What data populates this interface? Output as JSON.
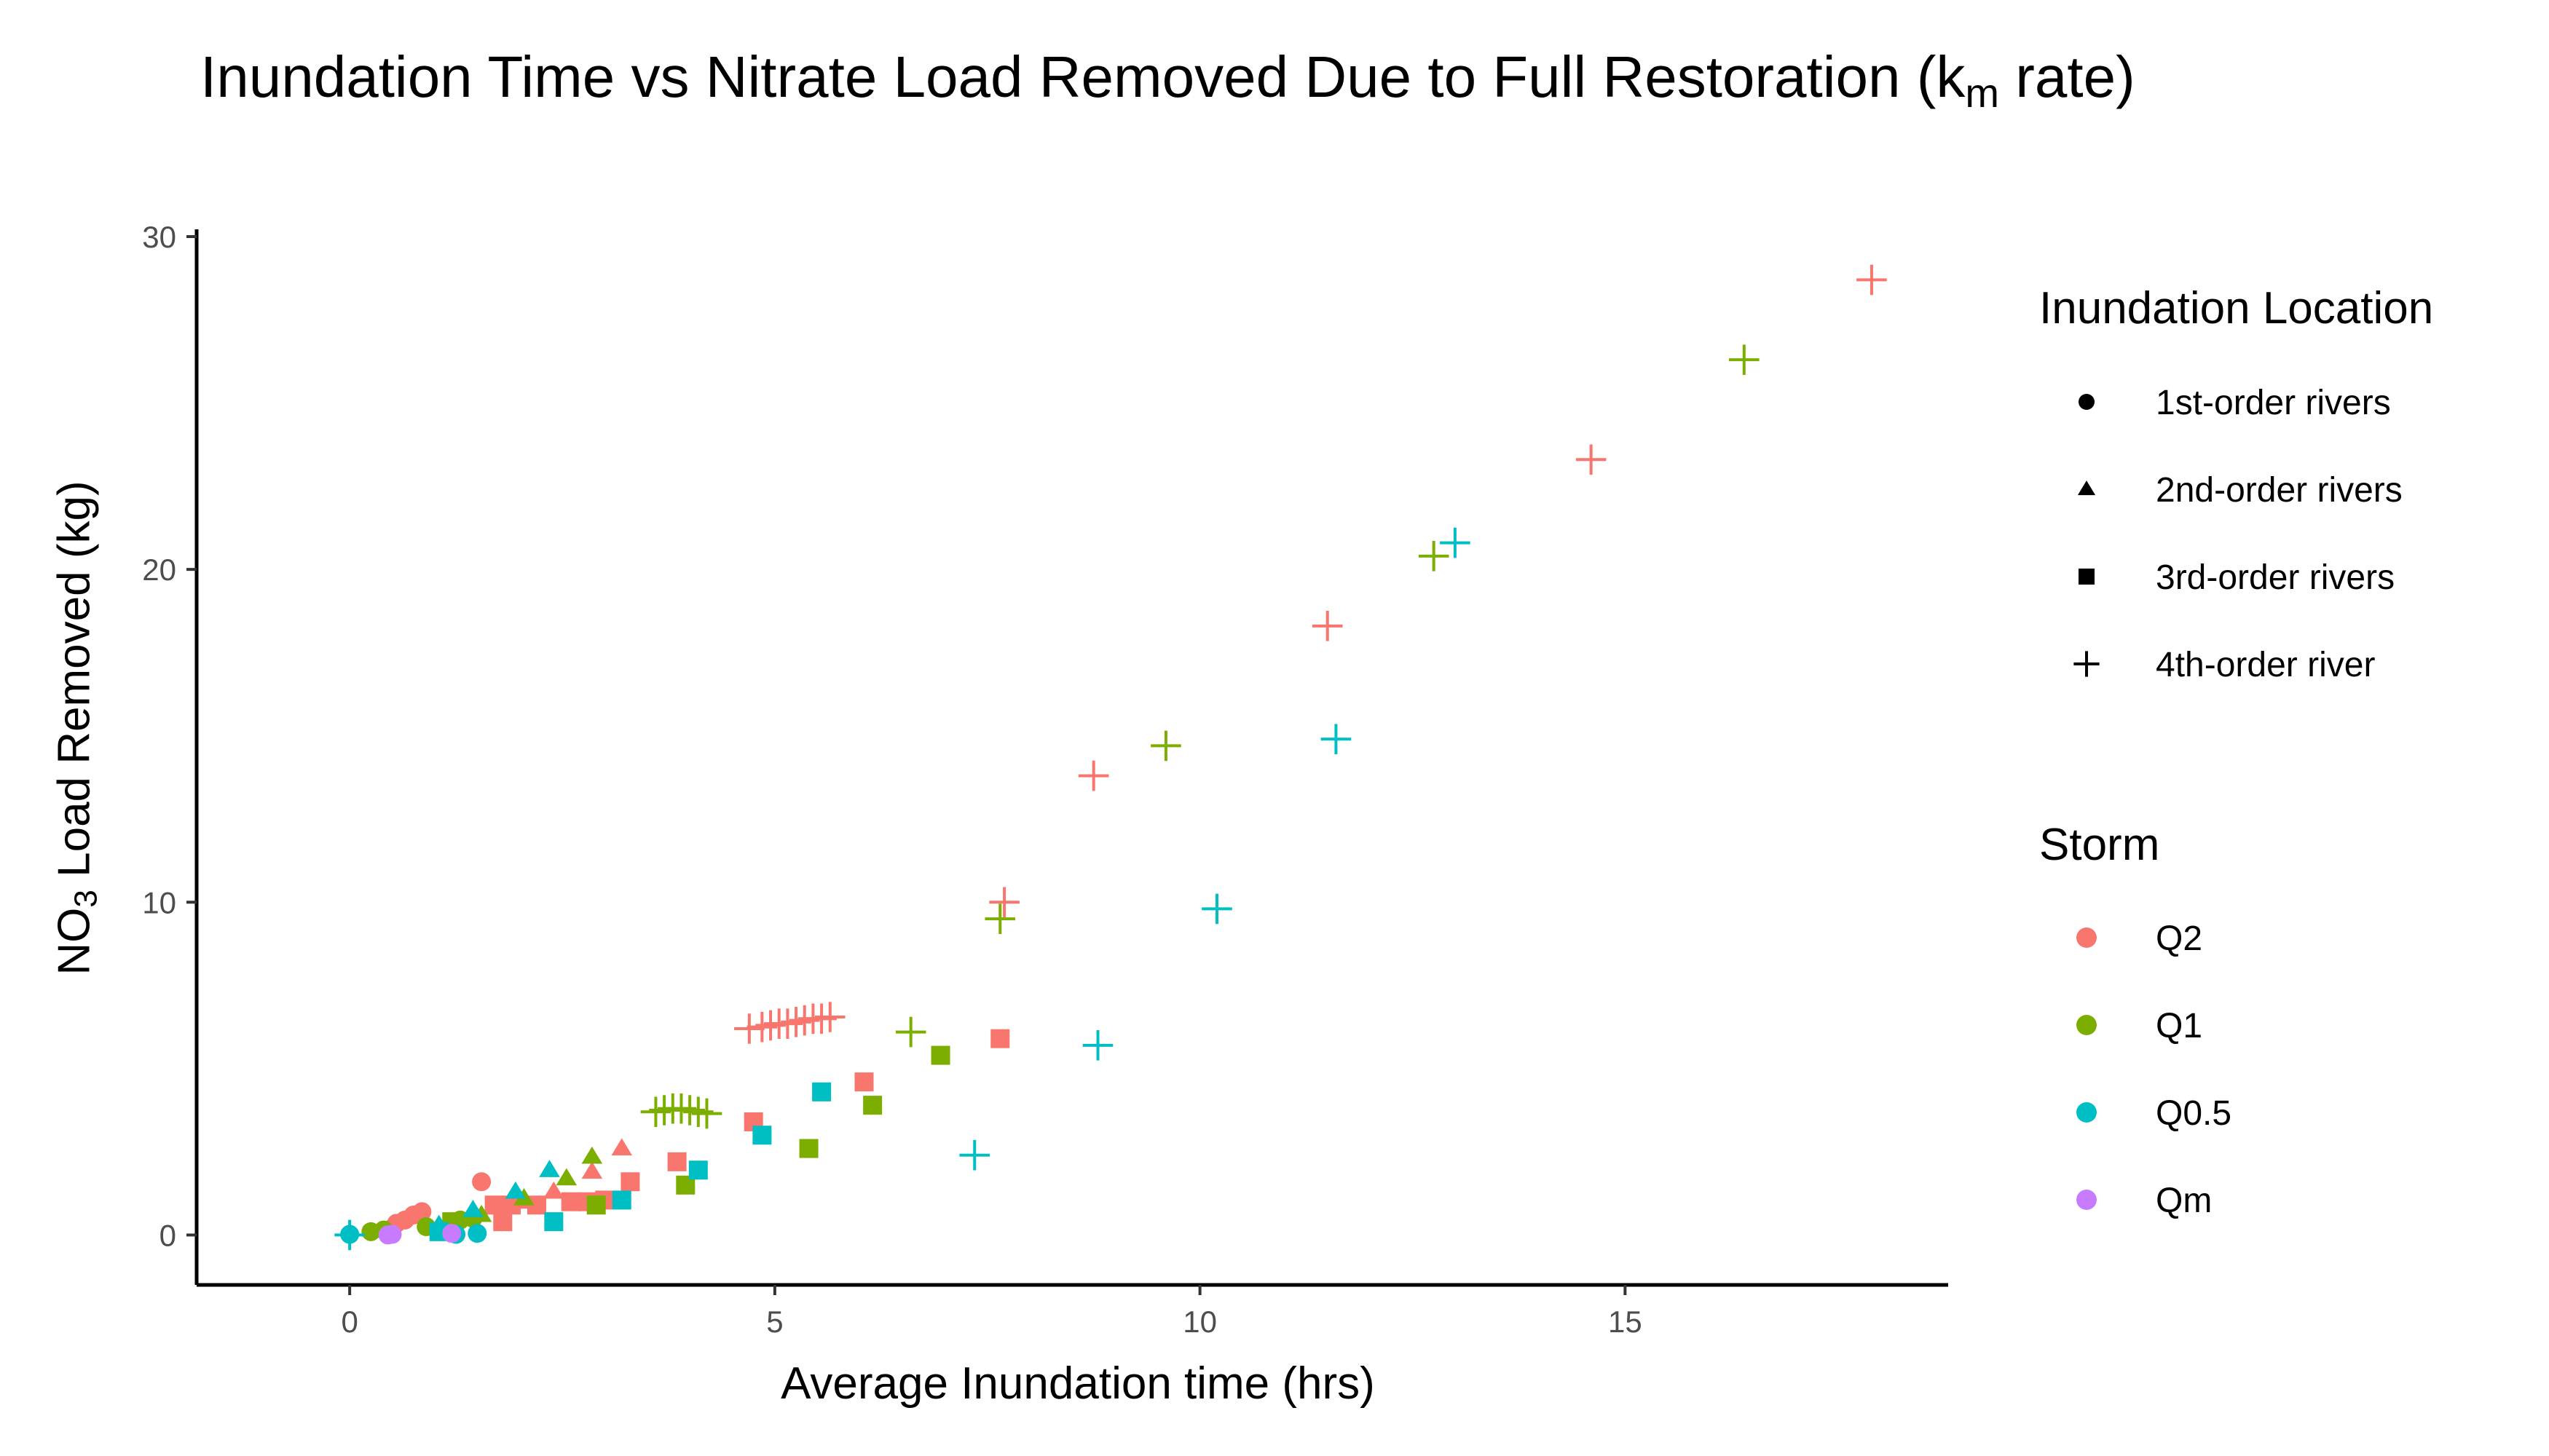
{
  "chart_data": {
    "type": "scatter",
    "title_main": "Inundation Time vs Nitrate Load Removed Due to Full Restoration (k",
    "title_sub": "m",
    "title_end": " rate)",
    "xlabel": "Average Inundation time (hrs)",
    "ylabel_main": "NO",
    "ylabel_sub": "3",
    "ylabel_end": " Load Removed (kg)",
    "xlim": [
      -1.8,
      18.8
    ],
    "ylim": [
      -1.5,
      30
    ],
    "xticks": [
      0,
      5,
      10,
      15
    ],
    "yticks": [
      0,
      10,
      20,
      30
    ],
    "grid": false,
    "legend_placement": "right",
    "shape_legend": {
      "title": "Inundation Location",
      "items": [
        {
          "shape": "circle",
          "label": "1st-order rivers"
        },
        {
          "shape": "triangle",
          "label": "2nd-order rivers"
        },
        {
          "shape": "square",
          "label": "3rd-order rivers"
        },
        {
          "shape": "plus",
          "label": "4th-order river"
        }
      ]
    },
    "color_legend": {
      "title": "Storm",
      "items": [
        {
          "label": "Q2",
          "color": "#F8766D"
        },
        {
          "label": "Q1",
          "color": "#7CAE00"
        },
        {
          "label": "Q0.5",
          "color": "#00BFC4"
        },
        {
          "label": "Qm",
          "color": "#C77CFF"
        }
      ]
    },
    "series": [
      {
        "storm": "Q2",
        "color": "#F8766D",
        "points": [
          {
            "shape": "plus",
            "x": 17.9,
            "y": 28.7
          },
          {
            "shape": "plus",
            "x": 14.6,
            "y": 23.3
          },
          {
            "shape": "plus",
            "x": 11.5,
            "y": 18.3
          },
          {
            "shape": "plus",
            "x": 8.75,
            "y": 13.8
          },
          {
            "shape": "plus",
            "x": 7.7,
            "y": 10.0
          },
          {
            "shape": "plus",
            "x": 4.7,
            "y": 6.2
          },
          {
            "shape": "plus",
            "x": 4.85,
            "y": 6.25
          },
          {
            "shape": "plus",
            "x": 4.95,
            "y": 6.3
          },
          {
            "shape": "plus",
            "x": 5.05,
            "y": 6.35
          },
          {
            "shape": "plus",
            "x": 5.15,
            "y": 6.35
          },
          {
            "shape": "plus",
            "x": 5.25,
            "y": 6.4
          },
          {
            "shape": "plus",
            "x": 5.35,
            "y": 6.45
          },
          {
            "shape": "plus",
            "x": 5.45,
            "y": 6.5
          },
          {
            "shape": "plus",
            "x": 5.55,
            "y": 6.5
          },
          {
            "shape": "plus",
            "x": 5.65,
            "y": 6.55
          },
          {
            "shape": "square",
            "x": 7.65,
            "y": 5.9
          },
          {
            "shape": "square",
            "x": 6.05,
            "y": 4.6
          },
          {
            "shape": "square",
            "x": 4.75,
            "y": 3.4
          },
          {
            "shape": "square",
            "x": 3.85,
            "y": 2.2
          },
          {
            "shape": "square",
            "x": 3.3,
            "y": 1.6
          },
          {
            "shape": "square",
            "x": 3.0,
            "y": 1.05
          },
          {
            "shape": "square",
            "x": 2.8,
            "y": 1.0
          },
          {
            "shape": "square",
            "x": 2.6,
            "y": 1.0
          },
          {
            "shape": "square",
            "x": 2.2,
            "y": 0.9
          },
          {
            "shape": "square",
            "x": 1.9,
            "y": 0.9
          },
          {
            "shape": "square",
            "x": 1.7,
            "y": 0.9
          },
          {
            "shape": "square",
            "x": 1.8,
            "y": 0.4
          },
          {
            "shape": "triangle",
            "x": 3.2,
            "y": 2.6
          },
          {
            "shape": "triangle",
            "x": 2.85,
            "y": 1.9
          },
          {
            "shape": "triangle",
            "x": 2.4,
            "y": 1.3
          },
          {
            "shape": "triangle",
            "x": 2.0,
            "y": 1.0
          },
          {
            "shape": "circle",
            "x": 1.55,
            "y": 1.6
          },
          {
            "shape": "circle",
            "x": 0.85,
            "y": 0.7
          },
          {
            "shape": "circle",
            "x": 0.75,
            "y": 0.6
          },
          {
            "shape": "circle",
            "x": 0.65,
            "y": 0.45
          },
          {
            "shape": "circle",
            "x": 0.55,
            "y": 0.35
          },
          {
            "shape": "circle",
            "x": 0.5,
            "y": 0.2
          }
        ]
      },
      {
        "storm": "Q1",
        "color": "#7CAE00",
        "points": [
          {
            "shape": "plus",
            "x": 16.4,
            "y": 26.3
          },
          {
            "shape": "plus",
            "x": 12.75,
            "y": 20.4
          },
          {
            "shape": "plus",
            "x": 9.6,
            "y": 14.7
          },
          {
            "shape": "plus",
            "x": 7.65,
            "y": 9.5
          },
          {
            "shape": "plus",
            "x": 6.6,
            "y": 6.1
          },
          {
            "shape": "plus",
            "x": 3.6,
            "y": 3.7
          },
          {
            "shape": "plus",
            "x": 3.7,
            "y": 3.75
          },
          {
            "shape": "plus",
            "x": 3.8,
            "y": 3.8
          },
          {
            "shape": "plus",
            "x": 3.9,
            "y": 3.8
          },
          {
            "shape": "plus",
            "x": 4.0,
            "y": 3.75
          },
          {
            "shape": "plus",
            "x": 4.1,
            "y": 3.7
          },
          {
            "shape": "plus",
            "x": 4.2,
            "y": 3.65
          },
          {
            "shape": "square",
            "x": 6.95,
            "y": 5.4
          },
          {
            "shape": "square",
            "x": 6.15,
            "y": 3.9
          },
          {
            "shape": "square",
            "x": 5.4,
            "y": 2.6
          },
          {
            "shape": "square",
            "x": 3.95,
            "y": 1.5
          },
          {
            "shape": "square",
            "x": 2.9,
            "y": 0.9
          },
          {
            "shape": "square",
            "x": 1.2,
            "y": 0.4
          },
          {
            "shape": "triangle",
            "x": 2.85,
            "y": 2.35
          },
          {
            "shape": "triangle",
            "x": 2.55,
            "y": 1.7
          },
          {
            "shape": "triangle",
            "x": 2.05,
            "y": 1.1
          },
          {
            "shape": "triangle",
            "x": 1.55,
            "y": 0.6
          },
          {
            "shape": "circle",
            "x": 1.45,
            "y": 0.5
          },
          {
            "shape": "circle",
            "x": 1.3,
            "y": 0.45
          },
          {
            "shape": "circle",
            "x": 0.9,
            "y": 0.25
          },
          {
            "shape": "circle",
            "x": 0.4,
            "y": 0.15
          },
          {
            "shape": "circle",
            "x": 0.25,
            "y": 0.1
          }
        ]
      },
      {
        "storm": "Q0.5",
        "color": "#00BFC4",
        "points": [
          {
            "shape": "plus",
            "x": 13.0,
            "y": 20.8
          },
          {
            "shape": "plus",
            "x": 11.6,
            "y": 14.9
          },
          {
            "shape": "plus",
            "x": 10.2,
            "y": 9.8
          },
          {
            "shape": "plus",
            "x": 8.8,
            "y": 5.7
          },
          {
            "shape": "plus",
            "x": 7.35,
            "y": 2.4
          },
          {
            "shape": "plus",
            "x": 0.0,
            "y": 0.0
          },
          {
            "shape": "square",
            "x": 5.55,
            "y": 4.3
          },
          {
            "shape": "square",
            "x": 4.85,
            "y": 3.0
          },
          {
            "shape": "square",
            "x": 4.1,
            "y": 1.95
          },
          {
            "shape": "square",
            "x": 3.2,
            "y": 1.05
          },
          {
            "shape": "square",
            "x": 2.4,
            "y": 0.4
          },
          {
            "shape": "square",
            "x": 1.05,
            "y": 0.1
          },
          {
            "shape": "triangle",
            "x": 2.35,
            "y": 1.95
          },
          {
            "shape": "triangle",
            "x": 1.95,
            "y": 1.3
          },
          {
            "shape": "triangle",
            "x": 1.45,
            "y": 0.75
          },
          {
            "shape": "triangle",
            "x": 1.05,
            "y": 0.3
          },
          {
            "shape": "circle",
            "x": 1.5,
            "y": 0.05
          },
          {
            "shape": "circle",
            "x": 1.25,
            "y": 0.02
          },
          {
            "shape": "circle",
            "x": 0.0,
            "y": 0.02
          }
        ]
      },
      {
        "storm": "Qm",
        "color": "#C77CFF",
        "points": [
          {
            "shape": "circle",
            "x": 1.2,
            "y": 0.05
          },
          {
            "shape": "circle",
            "x": 0.5,
            "y": 0.02
          },
          {
            "shape": "circle",
            "x": 0.45,
            "y": 0.0
          }
        ]
      }
    ]
  }
}
